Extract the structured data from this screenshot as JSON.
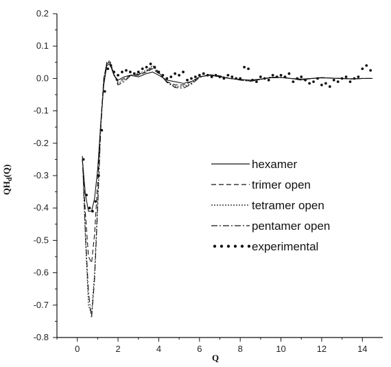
{
  "chart_data": {
    "type": "line",
    "title": "",
    "xlabel": "Q",
    "ylabel_main": "QH",
    "ylabel_sub": "d",
    "ylabel_tail": "(Q)",
    "xlim": [
      -1,
      15
    ],
    "ylim": [
      -0.8,
      0.2
    ],
    "x_ticks": [
      0,
      2,
      4,
      6,
      8,
      10,
      12,
      14
    ],
    "x_tick_labels": [
      "0",
      "2",
      "4",
      "6",
      "8",
      "10",
      "12",
      "14"
    ],
    "y_ticks": [
      0.2,
      0.1,
      0.0,
      -0.1,
      -0.2,
      -0.3,
      -0.4,
      -0.5,
      -0.6,
      -0.7,
      -0.8
    ],
    "y_tick_labels": [
      "0.2",
      "0.1",
      "0.0",
      "-0.1",
      "-0.2",
      "-0.3",
      "-0.4",
      "-0.5",
      "-0.6",
      "-0.7",
      "-0.8"
    ],
    "grid": false,
    "legend_position": "center-right",
    "series": [
      {
        "name": "hexamer",
        "style": "solid",
        "x": [
          0.25,
          0.4,
          0.55,
          0.7,
          0.85,
          1.0,
          1.15,
          1.3,
          1.45,
          1.6,
          1.8,
          2.0,
          2.3,
          2.6,
          3.0,
          3.4,
          3.7,
          4.0,
          4.4,
          4.8,
          5.2,
          5.6,
          6.0,
          6.5,
          7.0,
          7.5,
          8.0,
          8.5,
          9.0,
          9.5,
          10.0,
          10.5,
          11.0,
          11.5,
          12.0,
          12.5,
          13.0,
          13.5,
          14.0,
          14.5
        ],
        "y": [
          -0.25,
          -0.36,
          -0.41,
          -0.41,
          -0.37,
          -0.28,
          -0.14,
          -0.02,
          0.04,
          0.045,
          0.01,
          -0.005,
          0.005,
          0.01,
          0.005,
          0.015,
          0.02,
          0.01,
          -0.005,
          -0.01,
          -0.015,
          -0.01,
          0.005,
          0.01,
          0.005,
          0.0,
          -0.003,
          -0.005,
          -0.002,
          0.002,
          0.003,
          0.0,
          -0.002,
          0.0,
          0.002,
          0.001,
          0.0,
          -0.001,
          0.0,
          0.0
        ]
      },
      {
        "name": "trimer open",
        "style": "dashed",
        "x": [
          0.25,
          0.4,
          0.55,
          0.7,
          0.85,
          1.0,
          1.15,
          1.3,
          1.45,
          1.6,
          1.8,
          2.0,
          2.3,
          2.6,
          3.0,
          3.4,
          3.7,
          4.0,
          4.4,
          4.8,
          5.2,
          5.6,
          6.0,
          6.5,
          7.0,
          7.5,
          8.0,
          8.5,
          9.0,
          9.5,
          10.0,
          10.5,
          11.0,
          11.5,
          12.0,
          12.5,
          13.0,
          13.5,
          14.0,
          14.5
        ],
        "y": [
          -0.25,
          -0.42,
          -0.55,
          -0.57,
          -0.48,
          -0.32,
          -0.14,
          0.0,
          0.045,
          0.05,
          0.01,
          -0.01,
          0.0,
          0.01,
          0.01,
          0.02,
          0.03,
          0.015,
          -0.01,
          -0.02,
          -0.02,
          -0.01,
          0.005,
          0.01,
          0.005,
          0.0,
          -0.003,
          -0.006,
          -0.002,
          0.003,
          0.003,
          0.0,
          -0.003,
          0.0,
          0.002,
          0.001,
          0.0,
          -0.001,
          0.0,
          0.0
        ]
      },
      {
        "name": "tetramer open",
        "style": "dotted",
        "x": [
          0.25,
          0.4,
          0.55,
          0.7,
          0.85,
          1.0,
          1.15,
          1.3,
          1.45,
          1.6,
          1.8,
          2.0,
          2.3,
          2.6,
          3.0,
          3.4,
          3.7,
          4.0,
          4.4,
          4.8,
          5.2,
          5.6,
          6.0,
          6.5,
          7.0,
          7.5,
          8.0,
          8.5,
          9.0,
          9.5,
          10.0,
          10.5,
          11.0,
          11.5,
          12.0,
          12.5,
          13.0,
          13.5,
          14.0,
          14.5
        ],
        "y": [
          -0.24,
          -0.5,
          -0.7,
          -0.73,
          -0.6,
          -0.38,
          -0.15,
          0.0,
          0.05,
          0.055,
          0.015,
          -0.015,
          -0.005,
          0.01,
          0.015,
          0.025,
          0.04,
          0.02,
          -0.01,
          -0.025,
          -0.025,
          -0.015,
          0.005,
          0.012,
          0.008,
          0.0,
          -0.004,
          -0.008,
          -0.003,
          0.004,
          0.004,
          0.0,
          -0.004,
          0.0,
          0.003,
          0.001,
          0.0,
          -0.002,
          0.0,
          0.0
        ]
      },
      {
        "name": "pentamer open",
        "style": "dashdot",
        "x": [
          0.25,
          0.4,
          0.55,
          0.7,
          0.85,
          1.0,
          1.15,
          1.3,
          1.45,
          1.6,
          1.8,
          2.0,
          2.3,
          2.6,
          3.0,
          3.4,
          3.7,
          4.0,
          4.4,
          4.8,
          5.2,
          5.6,
          6.0,
          6.5,
          7.0,
          7.5,
          8.0,
          8.5,
          9.0,
          9.5,
          10.0,
          10.5,
          11.0,
          11.5,
          12.0,
          12.5,
          13.0,
          13.5,
          14.0,
          14.5
        ],
        "y": [
          -0.24,
          -0.48,
          -0.66,
          -0.74,
          -0.62,
          -0.4,
          -0.16,
          -0.01,
          0.05,
          0.05,
          0.012,
          -0.02,
          -0.01,
          0.008,
          0.012,
          0.022,
          0.035,
          0.018,
          -0.012,
          -0.028,
          -0.03,
          -0.018,
          0.003,
          0.012,
          0.008,
          0.0,
          -0.005,
          -0.009,
          -0.003,
          0.004,
          0.004,
          0.0,
          -0.005,
          0.0,
          0.003,
          0.001,
          0.0,
          -0.002,
          0.0,
          0.0
        ]
      },
      {
        "name": "experimental",
        "style": "points",
        "x": [
          0.3,
          0.45,
          0.6,
          0.75,
          0.9,
          1.05,
          1.2,
          1.35,
          1.5,
          1.65,
          1.8,
          2.0,
          2.2,
          2.4,
          2.6,
          2.8,
          3.0,
          3.2,
          3.4,
          3.6,
          3.8,
          4.0,
          4.2,
          4.4,
          4.6,
          4.8,
          5.0,
          5.2,
          5.4,
          5.6,
          5.8,
          6.0,
          6.2,
          6.4,
          6.6,
          6.8,
          7.0,
          7.2,
          7.4,
          7.6,
          7.8,
          8.0,
          8.2,
          8.4,
          8.6,
          8.8,
          9.0,
          9.2,
          9.4,
          9.6,
          9.8,
          10.0,
          10.2,
          10.4,
          10.6,
          10.8,
          11.0,
          11.2,
          11.4,
          11.6,
          11.8,
          12.0,
          12.2,
          12.4,
          12.6,
          12.8,
          13.0,
          13.2,
          13.4,
          13.6,
          13.8,
          14.0,
          14.2,
          14.4
        ],
        "y": [
          -0.25,
          -0.36,
          -0.4,
          -0.41,
          -0.38,
          -0.3,
          -0.16,
          -0.04,
          0.03,
          0.04,
          0.02,
          0.01,
          0.02,
          0.025,
          0.02,
          0.015,
          0.02,
          0.03,
          0.035,
          0.045,
          0.035,
          0.02,
          0.01,
          0.0,
          0.005,
          0.015,
          0.01,
          0.02,
          -0.005,
          0.0,
          0.005,
          0.01,
          0.015,
          0.01,
          0.005,
          0.01,
          0.005,
          0.0,
          0.01,
          0.005,
          0.0,
          0.0,
          0.035,
          0.03,
          -0.005,
          -0.01,
          0.005,
          0.0,
          -0.005,
          0.01,
          0.005,
          0.01,
          0.005,
          0.015,
          -0.01,
          0.0,
          0.005,
          -0.005,
          -0.015,
          -0.01,
          0.0,
          -0.02,
          -0.015,
          -0.025,
          -0.005,
          -0.01,
          0.0,
          0.005,
          -0.01,
          0.0,
          0.005,
          0.03,
          0.04,
          0.025
        ]
      }
    ]
  }
}
